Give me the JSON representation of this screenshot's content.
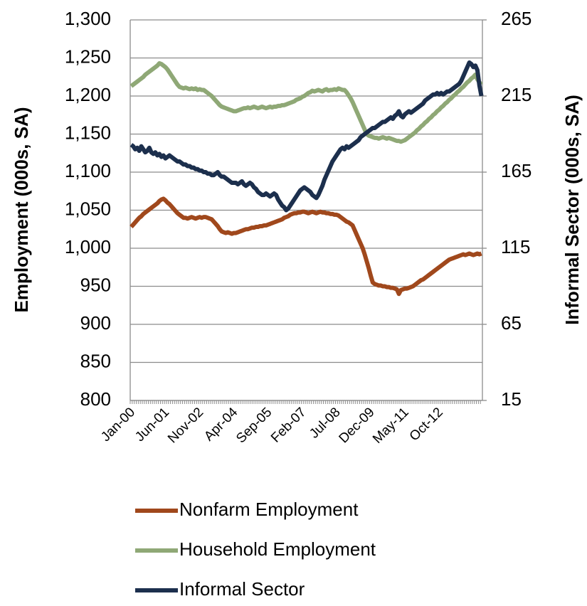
{
  "chart_data": {
    "type": "line",
    "y_label": "Employment (000s, SA)",
    "y2_label": "Informal Sector (000s, SA)",
    "ylim": [
      800,
      1300
    ],
    "yticks": [
      800,
      850,
      900,
      950,
      {
        "value": 1000,
        "label": "1,000"
      },
      {
        "value": 1050,
        "label": "1,050"
      },
      {
        "value": 1100,
        "label": "1,100"
      },
      {
        "value": 1150,
        "label": "1,150"
      },
      {
        "value": 1200,
        "label": "1,200"
      },
      {
        "value": 1250,
        "label": "1,250"
      },
      {
        "value": 1300,
        "label": "1,300"
      }
    ],
    "y2lim": [
      15,
      265
    ],
    "y2ticks": [
      15,
      65,
      115,
      165,
      215,
      265
    ],
    "grid": true,
    "legend": "bottom",
    "categories": [
      "Jan-00",
      null,
      null,
      null,
      null,
      null,
      null,
      null,
      null,
      null,
      null,
      null,
      null,
      null,
      null,
      null,
      null,
      "Jun-01",
      null,
      null,
      null,
      null,
      null,
      null,
      null,
      null,
      null,
      null,
      null,
      null,
      null,
      null,
      null,
      null,
      "Nov-02",
      null,
      null,
      null,
      null,
      null,
      null,
      null,
      null,
      null,
      null,
      null,
      null,
      null,
      null,
      null,
      null,
      "Apr-04",
      null,
      null,
      null,
      null,
      null,
      null,
      null,
      null,
      null,
      null,
      null,
      null,
      null,
      null,
      null,
      null,
      "Sep-05",
      null,
      null,
      null,
      null,
      null,
      null,
      null,
      null,
      null,
      null,
      null,
      null,
      null,
      null,
      null,
      null,
      "Feb-07",
      null,
      null,
      null,
      null,
      null,
      null,
      null,
      null,
      null,
      null,
      null,
      null,
      null,
      null,
      null,
      null,
      "Jul-08",
      null,
      null,
      null,
      null,
      null,
      null,
      null,
      null,
      null,
      null,
      null,
      null,
      null,
      null,
      null,
      null,
      "Dec-09",
      null,
      null,
      null,
      null,
      null,
      null,
      null,
      null,
      null,
      null,
      null,
      null,
      null,
      null,
      null,
      null,
      "May-11",
      null,
      null,
      null,
      null,
      null,
      null,
      null,
      null,
      null,
      null,
      null,
      null,
      null,
      null,
      null,
      null,
      "Oct-12",
      null,
      null,
      null,
      null,
      null,
      null,
      null,
      null,
      null,
      null,
      null,
      null,
      null,
      null,
      null,
      null,
      null,
      null,
      null,
      null,
      null
    ],
    "series": [
      {
        "name": "Nonfarm Employment",
        "color": "#a0481c",
        "values": [
          1028,
          1031,
          1034,
          1037,
          1040,
          1042,
          1045,
          1047,
          1049,
          1051,
          1053,
          1055,
          1057,
          1059,
          1062,
          1064,
          1065,
          1063,
          1060,
          1058,
          1055,
          1052,
          1049,
          1046,
          1044,
          1042,
          1040,
          1040,
          1039,
          1040,
          1041,
          1040,
          1039,
          1040,
          1041,
          1040,
          1041,
          1041,
          1040,
          1039,
          1038,
          1035,
          1032,
          1029,
          1025,
          1022,
          1021,
          1020,
          1021,
          1020,
          1019,
          1020,
          1020,
          1021,
          1022,
          1023,
          1024,
          1025,
          1025,
          1026,
          1027,
          1027,
          1028,
          1028,
          1029,
          1029,
          1030,
          1030,
          1031,
          1032,
          1033,
          1034,
          1035,
          1036,
          1037,
          1038,
          1040,
          1041,
          1042,
          1044,
          1045,
          1046,
          1046,
          1047,
          1047,
          1048,
          1048,
          1047,
          1046,
          1047,
          1048,
          1047,
          1046,
          1047,
          1048,
          1047,
          1047,
          1046,
          1046,
          1045,
          1045,
          1044,
          1044,
          1043,
          1041,
          1039,
          1037,
          1035,
          1034,
          1032,
          1030,
          1024,
          1018,
          1012,
          1006,
          1000,
          992,
          983,
          974,
          964,
          955,
          953,
          952,
          951,
          951,
          950,
          950,
          949,
          949,
          948,
          948,
          947,
          946,
          940,
          945,
          946,
          947,
          947,
          948,
          949,
          950,
          952,
          954,
          956,
          958,
          959,
          961,
          963,
          965,
          967,
          969,
          971,
          973,
          975,
          977,
          979,
          981,
          983,
          985,
          986,
          987,
          988,
          989,
          990,
          991,
          992,
          991,
          992,
          993,
          992,
          991,
          992,
          993,
          992,
          993
        ]
      },
      {
        "name": "Household Employment",
        "color": "#8fa876",
        "values": [
          1213,
          1215,
          1217,
          1219,
          1221,
          1223,
          1225,
          1228,
          1230,
          1232,
          1234,
          1236,
          1238,
          1240,
          1243,
          1242,
          1240,
          1238,
          1235,
          1231,
          1227,
          1223,
          1219,
          1215,
          1212,
          1211,
          1210,
          1211,
          1210,
          1209,
          1210,
          1209,
          1210,
          1208,
          1209,
          1208,
          1208,
          1206,
          1204,
          1202,
          1200,
          1197,
          1194,
          1191,
          1188,
          1186,
          1185,
          1184,
          1183,
          1182,
          1181,
          1180,
          1180,
          1181,
          1182,
          1183,
          1184,
          1184,
          1185,
          1184,
          1185,
          1186,
          1185,
          1184,
          1185,
          1186,
          1185,
          1184,
          1185,
          1186,
          1185,
          1186,
          1186,
          1187,
          1187,
          1188,
          1188,
          1189,
          1190,
          1191,
          1192,
          1193,
          1195,
          1196,
          1197,
          1199,
          1200,
          1202,
          1204,
          1205,
          1207,
          1206,
          1207,
          1208,
          1207,
          1206,
          1208,
          1209,
          1207,
          1208,
          1208,
          1209,
          1208,
          1210,
          1209,
          1208,
          1208,
          1205,
          1201,
          1197,
          1192,
          1186,
          1180,
          1174,
          1168,
          1162,
          1156,
          1150,
          1148,
          1147,
          1146,
          1145,
          1145,
          1144,
          1145,
          1146,
          1145,
          1144,
          1145,
          1144,
          1143,
          1142,
          1141,
          1141,
          1140,
          1141,
          1142,
          1144,
          1146,
          1148,
          1150,
          1152,
          1155,
          1157,
          1160,
          1162,
          1165,
          1167,
          1170,
          1172,
          1175,
          1177,
          1180,
          1182,
          1185,
          1187,
          1190,
          1192,
          1195,
          1197,
          1200,
          1202,
          1205,
          1207,
          1210,
          1212,
          1215,
          1218,
          1220,
          1223,
          1225,
          1228,
          1222,
          1218,
          1215
        ]
      },
      {
        "name": "Informal Sector",
        "color": "#1c2f4d",
        "axis": "y2",
        "values": [
          183,
          182,
          180,
          181,
          179,
          182,
          180,
          178,
          179,
          181,
          178,
          177,
          178,
          176,
          177,
          175,
          176,
          174,
          175,
          176,
          175,
          174,
          173,
          172,
          172,
          171,
          170,
          170,
          169,
          169,
          168,
          168,
          167,
          167,
          166,
          166,
          165,
          165,
          164,
          164,
          163,
          163,
          164,
          165,
          163,
          162,
          162,
          161,
          160,
          159,
          158,
          158,
          158,
          157,
          158,
          159,
          157,
          156,
          157,
          158,
          157,
          155,
          154,
          152,
          151,
          150,
          150,
          151,
          150,
          149,
          150,
          151,
          150,
          147,
          145,
          143,
          142,
          140,
          141,
          143,
          145,
          147,
          149,
          151,
          153,
          154,
          155,
          154,
          153,
          152,
          150,
          149,
          148,
          150,
          153,
          156,
          160,
          163,
          166,
          169,
          172,
          174,
          176,
          178,
          180,
          181,
          180,
          182,
          181,
          182,
          183,
          184,
          185,
          186,
          188,
          189,
          190,
          191,
          192,
          193,
          194,
          194,
          195,
          196,
          197,
          198,
          198,
          199,
          200,
          201,
          200,
          202,
          203,
          205,
          202,
          201,
          203,
          204,
          205,
          204,
          205,
          206,
          207,
          208,
          209,
          210,
          212,
          213,
          214,
          215,
          216,
          216,
          217,
          216,
          217,
          216,
          217,
          218,
          218,
          219,
          220,
          221,
          222,
          223,
          225,
          228,
          231,
          234,
          237,
          236,
          234,
          235,
          232,
          222,
          215
        ]
      }
    ]
  }
}
